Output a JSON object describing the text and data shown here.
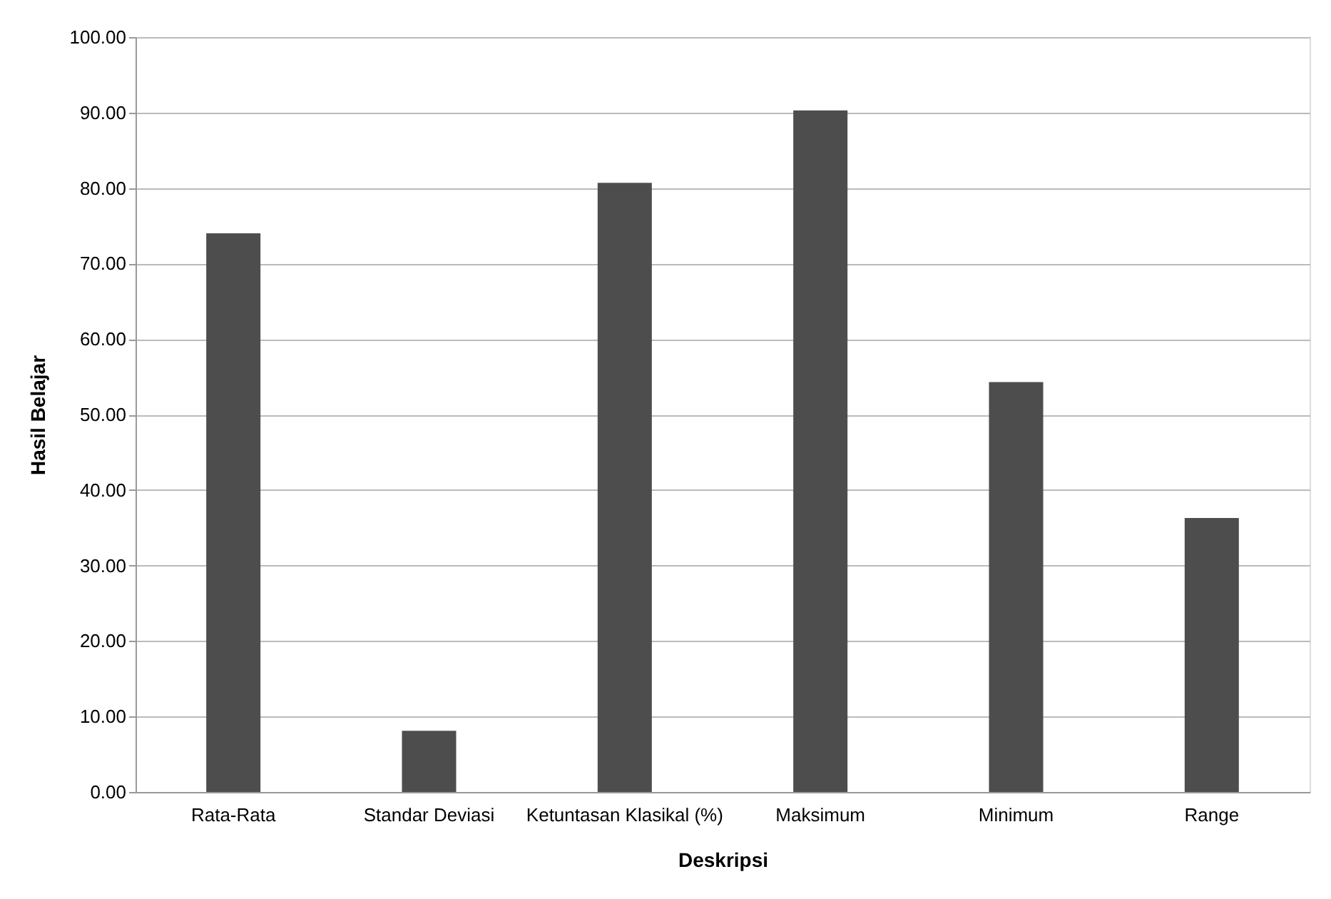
{
  "chart_data": {
    "type": "bar",
    "xlabel": "Deskripsi",
    "ylabel": "Hasil Belajar",
    "categories": [
      "Rata-Rata",
      "Standar Deviasi",
      "Ketuntasan Klasikal (%)",
      "Maksimum",
      "Minimum",
      "Range"
    ],
    "values": [
      74.0,
      8.1,
      80.7,
      90.3,
      54.3,
      36.3
    ],
    "color": "#4d4d4d",
    "ylim": [
      0,
      100
    ],
    "yticks": [
      {
        "value": 0,
        "label": "0.00"
      },
      {
        "value": 10,
        "label": "10.00"
      },
      {
        "value": 20,
        "label": "20.00"
      },
      {
        "value": 30,
        "label": "30.00"
      },
      {
        "value": 40,
        "label": "40.00"
      },
      {
        "value": 50,
        "label": "50.00"
      },
      {
        "value": 60,
        "label": "60.00"
      },
      {
        "value": 70,
        "label": "70.00"
      },
      {
        "value": 80,
        "label": "80.00"
      },
      {
        "value": 90,
        "label": "90.00"
      },
      {
        "value": 100,
        "label": "100.00"
      }
    ],
    "grid": "y"
  }
}
